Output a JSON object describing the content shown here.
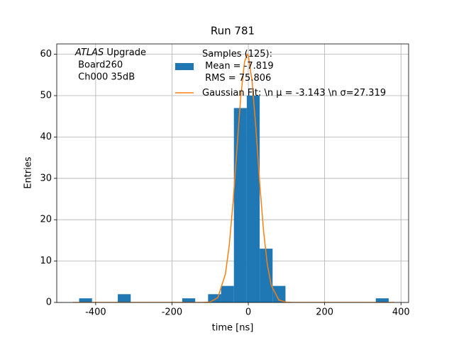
{
  "chart_data": {
    "type": "histogram",
    "title": "Run 781",
    "xlabel": "time [ns]",
    "ylabel": "Entries",
    "annotation": {
      "emph": "ATLAS",
      "lines": [
        " Upgrade",
        " Board260",
        " Ch000 35dB"
      ]
    },
    "bins": [
      -443.4,
      -409.6,
      -375.8,
      -342.0,
      -308.2,
      -274.4,
      -240.6,
      -206.8,
      -173.0,
      -139.2,
      -105.4,
      -71.6,
      -37.8,
      -4.0,
      29.8,
      63.6,
      97.4,
      131.2,
      165.0,
      198.8,
      232.6,
      266.4,
      300.2,
      334.0,
      367.8,
      401.6
    ],
    "series": [
      {
        "name": "Samples (125):\n Mean = -7.819\n RMS = 75.806",
        "color": "#1f77b4",
        "values": [
          1,
          0,
          0,
          2,
          0,
          0,
          0,
          0,
          1,
          0,
          2,
          4,
          47,
          50,
          13,
          4,
          0,
          0,
          0,
          0,
          0,
          0,
          0,
          1,
          0
        ]
      },
      {
        "name": "Gaussian Fit: \\n μ = -3.143 \\n σ=27.319",
        "color": "#ff7f0e",
        "type": "line",
        "x": [
          -460,
          -120,
          -100,
          -80,
          -60,
          -50,
          -40,
          -30,
          -20,
          -10,
          -3.143,
          0,
          10,
          20,
          30,
          40,
          50,
          60,
          80,
          100,
          120,
          383
        ],
        "values": [
          0,
          0,
          0.11,
          1.15,
          6.88,
          13.8,
          24.15,
          36.9,
          49.6,
          58.1,
          60,
          59.6,
          53.4,
          41.9,
          28.7,
          17.2,
          9.06,
          4.15,
          0.58,
          0.05,
          0,
          0
        ]
      }
    ],
    "xlim": [
      -502,
      420
    ],
    "ylim": [
      0,
      62.5
    ],
    "xticks": [
      -400,
      -200,
      0,
      200,
      400
    ],
    "yticks": [
      0,
      10,
      20,
      30,
      40,
      50,
      60
    ],
    "grid": true
  }
}
